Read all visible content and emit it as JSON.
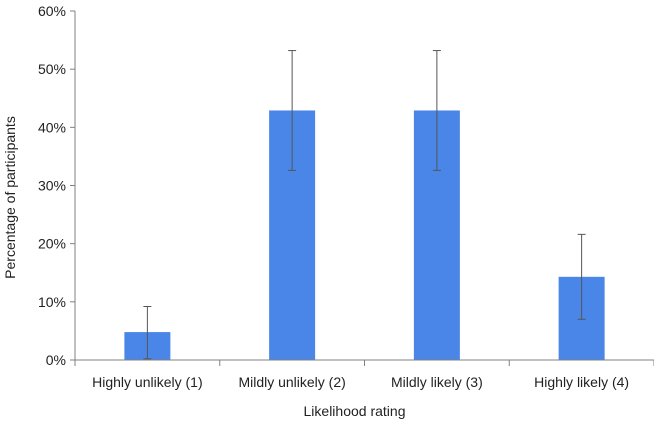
{
  "chart_data": {
    "type": "bar",
    "title": "",
    "xlabel": "Likelihood rating",
    "ylabel": "Percentage of participants",
    "categories": [
      "Highly unlikely (1)",
      "Mildly unlikely (2)",
      "Mildly likely (3)",
      "Highly likely (4)"
    ],
    "series": [
      {
        "name": "Percentage of participants",
        "values": [
          4.8,
          42.9,
          42.9,
          14.3
        ],
        "error_low": [
          0.2,
          32.6,
          32.6,
          7.0
        ],
        "error_high": [
          9.2,
          53.2,
          53.2,
          21.6
        ]
      }
    ],
    "ylim": [
      0,
      60
    ],
    "yticks": [
      0,
      10,
      20,
      30,
      40,
      50,
      60
    ],
    "ytick_labels": [
      "0%",
      "10%",
      "20%",
      "30%",
      "40%",
      "50%",
      "60%"
    ],
    "grid": false,
    "legend": "none",
    "colors": {
      "bar": "#4a86e8",
      "axis": "#808080",
      "error": "#555555"
    }
  }
}
